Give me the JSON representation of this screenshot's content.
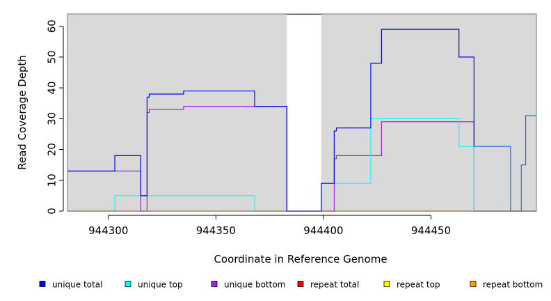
{
  "chart_data": {
    "type": "line",
    "title": "",
    "xlabel": "Coordinate in Reference Genome",
    "ylabel": "Read Coverage Depth",
    "xlim": [
      944281,
      944499
    ],
    "ylim": [
      0,
      64
    ],
    "x_ticks": [
      944300,
      944350,
      944400,
      944450
    ],
    "x_tick_labels": [
      "944300",
      "944350",
      "944400",
      "944450"
    ],
    "y_ticks": [
      0,
      10,
      20,
      30,
      40,
      50,
      60
    ],
    "y_tick_labels": [
      "0",
      "10",
      "20",
      "30",
      "40",
      "50",
      "60"
    ],
    "grid": false,
    "plot_background": "#d9d9d9",
    "gap_region": {
      "x": [
        944383,
        944399
      ],
      "color": "#ffffff"
    },
    "series": [
      {
        "name": "unique bottom",
        "color": "#a020f0",
        "points": [
          [
            944281,
            13
          ],
          [
            944315,
            13
          ],
          [
            944315,
            0
          ],
          [
            944318,
            0
          ],
          [
            944318,
            32
          ],
          [
            944319,
            32
          ],
          [
            944319,
            33
          ],
          [
            944335,
            33
          ],
          [
            944335,
            34
          ],
          [
            944383,
            34
          ],
          [
            944383,
            0
          ],
          [
            944405,
            0
          ],
          [
            944405,
            17
          ],
          [
            944406,
            17
          ],
          [
            944406,
            18
          ],
          [
            944427,
            18
          ],
          [
            944427,
            29
          ],
          [
            944470,
            29
          ],
          [
            944470,
            0
          ],
          [
            944499,
            0
          ]
        ]
      },
      {
        "name": "unique top",
        "color": "#00ffff",
        "points": [
          [
            944281,
            0
          ],
          [
            944303,
            0
          ],
          [
            944303,
            5
          ],
          [
            944368,
            5
          ],
          [
            944368,
            0
          ],
          [
            944399,
            0
          ],
          [
            944399,
            9
          ],
          [
            944422,
            9
          ],
          [
            944422,
            30
          ],
          [
            944463,
            30
          ],
          [
            944463,
            21
          ],
          [
            944470,
            21
          ],
          [
            944470,
            0
          ],
          [
            944499,
            0
          ]
        ]
      },
      {
        "name": "unique total",
        "color": "#0000ff",
        "points": [
          [
            944281,
            13
          ],
          [
            944303,
            13
          ],
          [
            944303,
            18
          ],
          [
            944315,
            18
          ],
          [
            944315,
            5
          ],
          [
            944318,
            5
          ],
          [
            944318,
            37
          ],
          [
            944319,
            37
          ],
          [
            944319,
            38
          ],
          [
            944335,
            38
          ],
          [
            944335,
            39
          ],
          [
            944368,
            39
          ],
          [
            944368,
            34
          ],
          [
            944383,
            34
          ],
          [
            944383,
            0
          ],
          [
            944399,
            0
          ],
          [
            944399,
            9
          ],
          [
            944405,
            9
          ],
          [
            944405,
            26
          ],
          [
            944406,
            26
          ],
          [
            944406,
            27
          ],
          [
            944422,
            27
          ],
          [
            944422,
            48
          ],
          [
            944427,
            48
          ],
          [
            944427,
            59
          ],
          [
            944463,
            59
          ],
          [
            944463,
            50
          ],
          [
            944470,
            50
          ],
          [
            944470,
            21
          ]
        ]
      },
      {
        "name": "unique total (continued)",
        "color": "#1f6fe0",
        "points": [
          [
            944470,
            21
          ],
          [
            944487,
            21
          ],
          [
            944487,
            0
          ],
          [
            944492,
            0
          ],
          [
            944492,
            15
          ],
          [
            944494,
            15
          ],
          [
            944494,
            31
          ],
          [
            944499,
            31
          ]
        ]
      },
      {
        "name": "repeat bottom",
        "color": "#ffa500",
        "points": [
          [
            944281,
            0
          ],
          [
            944383,
            0
          ]
        ]
      },
      {
        "name": "repeat bottom (right)",
        "color": "#ffa500",
        "points": [
          [
            944399,
            0
          ],
          [
            944499,
            0
          ]
        ]
      }
    ],
    "legend": {
      "placement": "bottom",
      "entries": [
        {
          "label": "unique total",
          "color": "#0000ff"
        },
        {
          "label": "unique top",
          "color": "#00ffff"
        },
        {
          "label": "unique bottom",
          "color": "#a020f0"
        },
        {
          "label": "repeat total",
          "color": "#ff0000"
        },
        {
          "label": "repeat top",
          "color": "#ffff00"
        },
        {
          "label": "repeat bottom",
          "color": "#ffa500"
        }
      ]
    }
  }
}
